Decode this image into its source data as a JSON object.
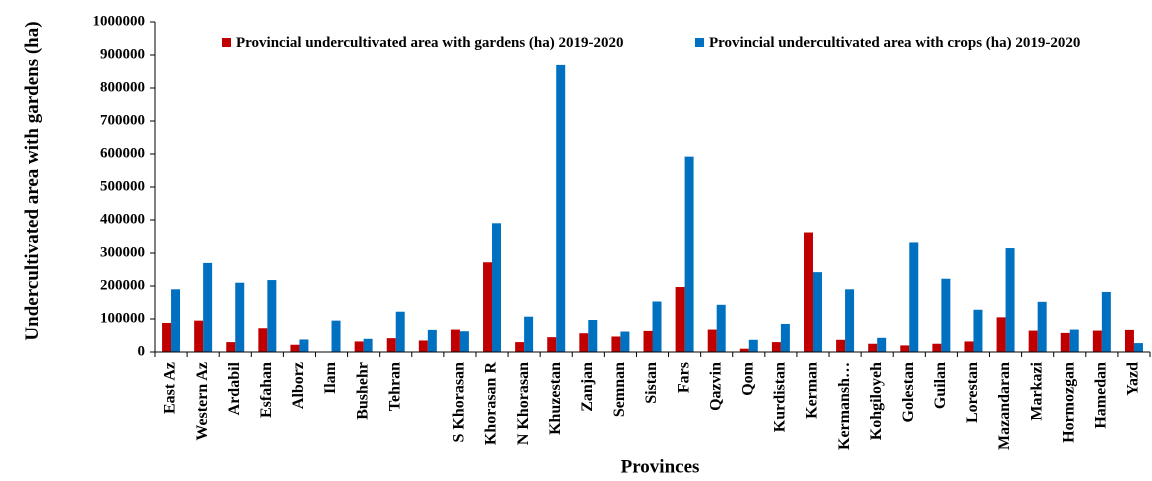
{
  "chart_data": {
    "type": "bar",
    "ylabel": "Undercultivated area with gardens (ha)",
    "xlabel": "Provinces",
    "categories": [
      "East Az",
      "Western Az",
      "Ardabil",
      "Esfahan",
      "Alborz",
      "Ilam",
      "Bushehr",
      "Tehran",
      null,
      "S Khorasan",
      "Khorasan R",
      "N Khorasan",
      "Khuzestan",
      "Zanjan",
      "Semnan",
      "Sistan",
      "Fars",
      "Qazvin",
      "Qom",
      "Kurdistan",
      "Kerman",
      "Kermansh…",
      "Kohgiloyeh",
      "Golestan",
      "Guilan",
      "Lorestan",
      "Mazandaran",
      "Markazi",
      "Hormozgan",
      "Hamedan",
      "Yazd"
    ],
    "series": [
      {
        "name": "Provincial undercultivated area with gardens (ha) 2019-2020",
        "color": "#c00000",
        "values": [
          88000,
          95000,
          30000,
          72000,
          22000,
          0,
          32000,
          42000,
          35000,
          68000,
          272000,
          30000,
          45000,
          57000,
          47000,
          64000,
          197000,
          68000,
          10000,
          30000,
          362000,
          37000,
          25000,
          20000,
          25000,
          32000,
          105000,
          65000,
          58000,
          65000,
          67000
        ]
      },
      {
        "name": "Provincial undercultivated area with crops (ha) 2019-2020",
        "color": "#0070c0",
        "values": [
          190000,
          270000,
          210000,
          218000,
          38000,
          95000,
          40000,
          122000,
          67000,
          63000,
          390000,
          107000,
          870000,
          97000,
          62000,
          153000,
          592000,
          143000,
          37000,
          85000,
          242000,
          190000,
          43000,
          332000,
          222000,
          128000,
          315000,
          152000,
          68000,
          182000,
          27000
        ]
      }
    ],
    "ylim": [
      0,
      1000000
    ],
    "yticks": [
      0,
      100000,
      200000,
      300000,
      400000,
      500000,
      600000,
      700000,
      800000,
      900000,
      1000000
    ]
  }
}
